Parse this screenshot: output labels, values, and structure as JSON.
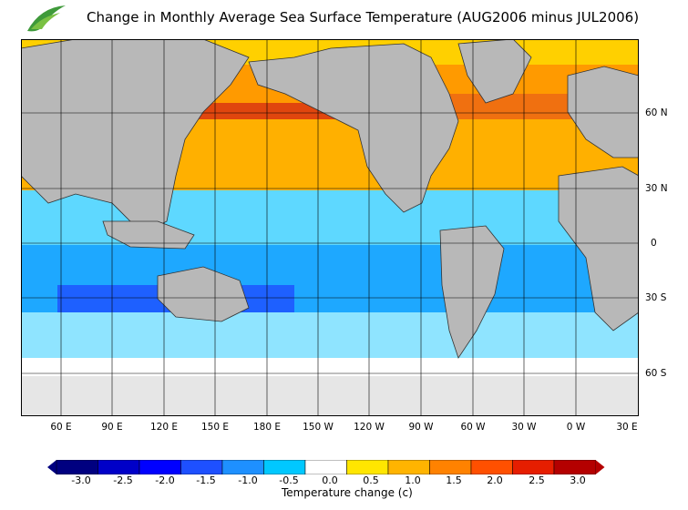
{
  "title": "Change in Monthly Average Sea Surface Temperature (AUG2006 minus JUL2006)",
  "logo": {
    "name": "hko-logo",
    "colors": [
      "#3f9a3a",
      "#7ac143"
    ]
  },
  "x_axis_labels": [
    "60 E",
    "90 E",
    "120 E",
    "150 E",
    "180 E",
    "150 W",
    "120 W",
    "90 W",
    "60 W",
    "30 W",
    "0 W",
    "30 E"
  ],
  "y_axis_labels": [
    "60 N",
    "30 N",
    "0",
    "30 S",
    "60 S"
  ],
  "colorbar": {
    "title": "Temperature change  (c)",
    "tick_labels": [
      "-3.0",
      "-2.5",
      "-2.0",
      "-1.5",
      "-1.0",
      "-0.5",
      "0.0",
      "0.5",
      "1.0",
      "1.5",
      "2.0",
      "2.5",
      "3.0"
    ],
    "colors": [
      "#000080",
      "#0000c8",
      "#0000ff",
      "#1e50ff",
      "#1e90ff",
      "#00c8ff",
      "#ffffff",
      "#ffe600",
      "#ffb400",
      "#ff8200",
      "#ff5000",
      "#e61e00",
      "#b40000"
    ]
  },
  "colors": {
    "land": "#b8b8b8",
    "sea_ice": "#e6e6e6",
    "warm_strong": "#d43a10",
    "warm_mid": "#ff8200",
    "warm_light": "#ffd000",
    "cool_light": "#00c8ff",
    "cool_mid": "#1e90ff",
    "cool_strong": "#0000ff"
  }
}
